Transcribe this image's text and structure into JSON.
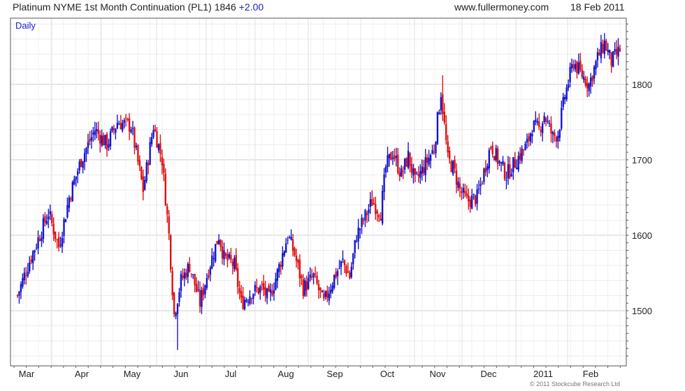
{
  "header": {
    "title": "Platinum NYME 1st Month Continuation (PL1) 1846",
    "change": "+2.00",
    "site": "www.fullermoney.com",
    "date": "18 Feb 2011"
  },
  "copyright": "© 2011 Stockcube Research Ltd",
  "chart_data": {
    "type": "candlestick",
    "period_label": "Daily",
    "x_labels": [
      "Mar",
      "Apr",
      "May",
      "Jun",
      "Jul",
      "Aug",
      "Sep",
      "Oct",
      "Nov",
      "Dec",
      "2011",
      "Feb"
    ],
    "y_ticks": [
      1500,
      1600,
      1700,
      1800
    ],
    "ylim": [
      1430,
      1890
    ],
    "colors": {
      "up": "#1515d0",
      "down": "#e01010",
      "grid": "#cfcfcf",
      "frame": "#555555"
    },
    "grid": true,
    "close_path": [
      {
        "d": 0,
        "v": 1520
      },
      {
        "d": 6,
        "v": 1560
      },
      {
        "d": 18,
        "v": 1630
      },
      {
        "d": 24,
        "v": 1585
      },
      {
        "d": 30,
        "v": 1650
      },
      {
        "d": 37,
        "v": 1700
      },
      {
        "d": 45,
        "v": 1740
      },
      {
        "d": 52,
        "v": 1720
      },
      {
        "d": 58,
        "v": 1750
      },
      {
        "d": 66,
        "v": 1745
      },
      {
        "d": 73,
        "v": 1660
      },
      {
        "d": 79,
        "v": 1745
      },
      {
        "d": 84,
        "v": 1700
      },
      {
        "d": 88,
        "v": 1600
      },
      {
        "d": 91,
        "v": 1495
      },
      {
        "d": 95,
        "v": 1540
      },
      {
        "d": 100,
        "v": 1560
      },
      {
        "d": 106,
        "v": 1510
      },
      {
        "d": 111,
        "v": 1555
      },
      {
        "d": 117,
        "v": 1600
      },
      {
        "d": 120,
        "v": 1570
      },
      {
        "d": 126,
        "v": 1560
      },
      {
        "d": 130,
        "v": 1510
      },
      {
        "d": 136,
        "v": 1525
      },
      {
        "d": 142,
        "v": 1530
      },
      {
        "d": 146,
        "v": 1515
      },
      {
        "d": 151,
        "v": 1550
      },
      {
        "d": 157,
        "v": 1600
      },
      {
        "d": 161,
        "v": 1575
      },
      {
        "d": 166,
        "v": 1530
      },
      {
        "d": 172,
        "v": 1545
      },
      {
        "d": 178,
        "v": 1510
      },
      {
        "d": 184,
        "v": 1545
      },
      {
        "d": 189,
        "v": 1565
      },
      {
        "d": 193,
        "v": 1545
      },
      {
        "d": 197,
        "v": 1600
      },
      {
        "d": 202,
        "v": 1625
      },
      {
        "d": 206,
        "v": 1645
      },
      {
        "d": 211,
        "v": 1630
      },
      {
        "d": 214,
        "v": 1690
      },
      {
        "d": 218,
        "v": 1710
      },
      {
        "d": 223,
        "v": 1680
      },
      {
        "d": 227,
        "v": 1705
      },
      {
        "d": 231,
        "v": 1670
      },
      {
        "d": 236,
        "v": 1690
      },
      {
        "d": 242,
        "v": 1715
      },
      {
        "d": 246,
        "v": 1790
      },
      {
        "d": 250,
        "v": 1700
      },
      {
        "d": 253,
        "v": 1690
      },
      {
        "d": 257,
        "v": 1660
      },
      {
        "d": 261,
        "v": 1645
      },
      {
        "d": 267,
        "v": 1650
      },
      {
        "d": 270,
        "v": 1675
      },
      {
        "d": 275,
        "v": 1720
      },
      {
        "d": 279,
        "v": 1700
      },
      {
        "d": 284,
        "v": 1680
      },
      {
        "d": 290,
        "v": 1700
      },
      {
        "d": 296,
        "v": 1720
      },
      {
        "d": 299,
        "v": 1745
      },
      {
        "d": 303,
        "v": 1740
      },
      {
        "d": 306,
        "v": 1760
      },
      {
        "d": 311,
        "v": 1730
      },
      {
        "d": 314,
        "v": 1735
      },
      {
        "d": 318,
        "v": 1785
      },
      {
        "d": 323,
        "v": 1830
      },
      {
        "d": 327,
        "v": 1815
      },
      {
        "d": 332,
        "v": 1800
      },
      {
        "d": 337,
        "v": 1835
      },
      {
        "d": 341,
        "v": 1855
      },
      {
        "d": 345,
        "v": 1830
      },
      {
        "d": 350,
        "v": 1846
      }
    ]
  }
}
